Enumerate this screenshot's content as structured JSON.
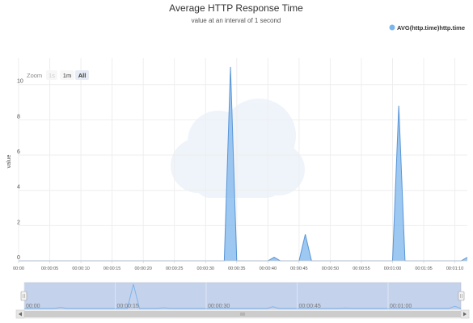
{
  "chart_data": {
    "type": "area",
    "title": "Average HTTP Response Time",
    "subtitle": "value at an interval of 1 second",
    "ylabel": "value",
    "xlabel": "",
    "ylim": [
      0,
      11.5
    ],
    "y_ticks": [
      "0",
      "2",
      "4",
      "6",
      "8",
      "10"
    ],
    "y_tick_values": [
      0,
      2,
      4,
      6,
      8,
      10
    ],
    "xlim": [
      0,
      72
    ],
    "x_ticks": [
      "00:00",
      "00:00:05",
      "00:00:10",
      "00:00:15",
      "00:00:20",
      "00:00:25",
      "00:00:30",
      "00:00:35",
      "00:00:40",
      "00:00:45",
      "00:00:50",
      "00:00:55",
      "00:01:00",
      "00:01:05",
      "00:01:10"
    ],
    "x_tick_values": [
      0,
      5,
      10,
      15,
      20,
      25,
      30,
      35,
      40,
      45,
      50,
      55,
      60,
      65,
      70
    ],
    "legend_position": "top-right",
    "grid": true,
    "series": [
      {
        "name": "AVG(http.time)http.time",
        "color": "#7cb5ec",
        "x": [
          0,
          33,
          34,
          35,
          40,
          41,
          42,
          45,
          46,
          47,
          60,
          61,
          62,
          71,
          72
        ],
        "y": [
          0,
          0,
          11,
          0,
          0,
          0.2,
          0,
          0,
          1.5,
          0,
          0,
          8.8,
          0,
          0,
          0.2
        ]
      }
    ]
  },
  "zoom": {
    "label": "Zoom",
    "buttons": [
      {
        "label": "1s",
        "state": "disabled"
      },
      {
        "label": "1m",
        "state": "normal"
      },
      {
        "label": "All",
        "state": "selected"
      }
    ]
  },
  "navigator": {
    "tick_labels": [
      "00:00",
      "00:00:15",
      "00:00:30",
      "00:00:45",
      "00:01:00"
    ],
    "tick_values": [
      0,
      15,
      30,
      45,
      60
    ],
    "series_color": "#7cb5ec",
    "mask_color": "#c5d2ec",
    "x": [
      0,
      5,
      6,
      7,
      17,
      18,
      19,
      22,
      23,
      24,
      40,
      41,
      42,
      52,
      53,
      54,
      70,
      71,
      72
    ],
    "y": [
      0,
      0,
      0.5,
      0,
      0,
      11,
      0,
      0,
      0.3,
      0,
      0,
      0.8,
      0,
      0,
      0.2,
      0,
      0,
      1.0,
      0
    ]
  }
}
